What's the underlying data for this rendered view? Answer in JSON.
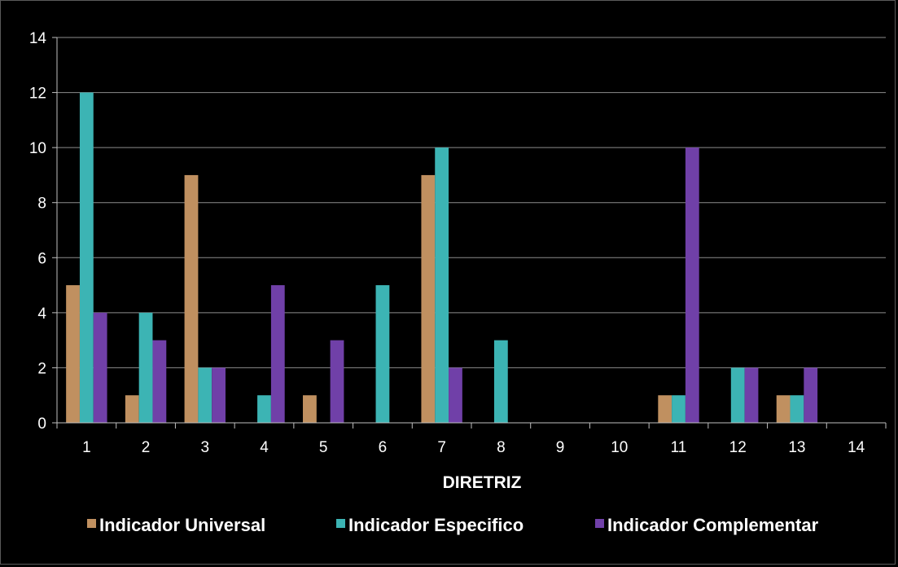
{
  "chart_data": {
    "type": "bar",
    "title": "",
    "xlabel": "DIRETRIZ",
    "ylabel": "",
    "categories": [
      "1",
      "2",
      "3",
      "4",
      "5",
      "6",
      "7",
      "8",
      "9",
      "10",
      "11",
      "12",
      "13",
      "14"
    ],
    "y_ticks": [
      "0",
      "2",
      "4",
      "6",
      "8",
      "10",
      "12",
      "14"
    ],
    "ylim": [
      0,
      14
    ],
    "grid": true,
    "legend_position": "bottom",
    "series": [
      {
        "name": "Indicador Universal",
        "color": "#c09060",
        "values": [
          5,
          1,
          9,
          0,
          1,
          0,
          9,
          0,
          0,
          0,
          1,
          0,
          1,
          0
        ]
      },
      {
        "name": "Indicador Especifico",
        "color": "#3cb4b4",
        "values": [
          12,
          4,
          2,
          1,
          0,
          5,
          10,
          3,
          0,
          0,
          1,
          2,
          1,
          0
        ]
      },
      {
        "name": "Indicador Complementar",
        "color": "#7040a8",
        "values": [
          4,
          3,
          2,
          5,
          3,
          0,
          2,
          0,
          0,
          0,
          10,
          2,
          2,
          0
        ]
      }
    ]
  },
  "colors": {
    "background": "#000000",
    "gridline": "#8c8c8c",
    "axis": "#bfbfbf",
    "text": "#ffffff"
  }
}
